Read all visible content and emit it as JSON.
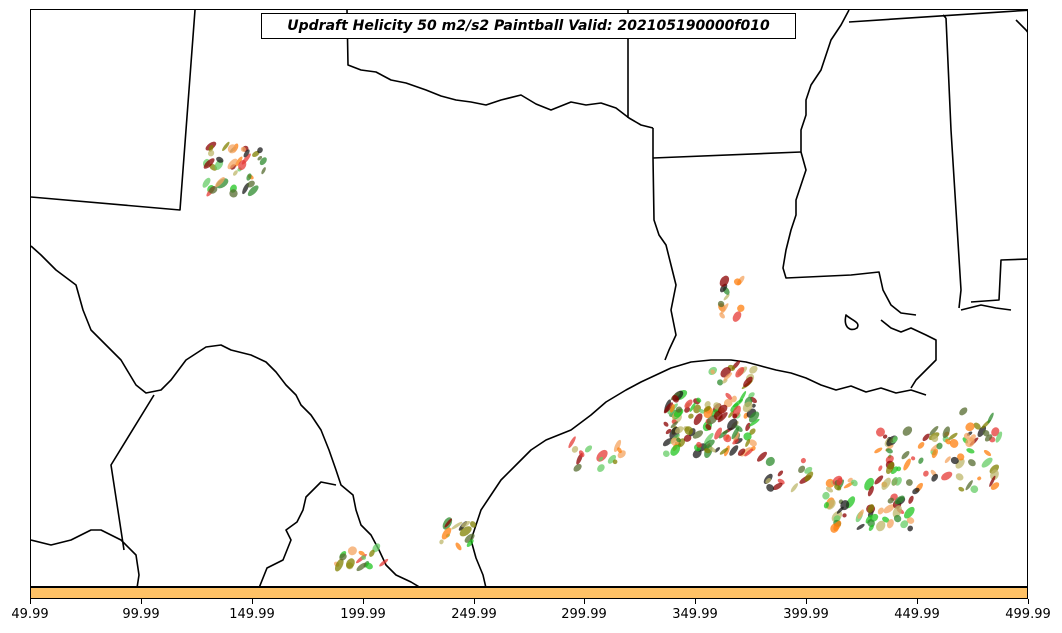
{
  "title": "Updraft Helicity 50 m2/s2 Paintball Valid: 202105190000f010",
  "colorbar": {
    "color": "#ffc266"
  },
  "x_axis": {
    "ticks": [
      "49.99",
      "99.99",
      "149.99",
      "199.99",
      "249.99",
      "299.99",
      "349.99",
      "399.99",
      "449.99",
      "499.99"
    ],
    "range": [
      49.99,
      499.99
    ]
  },
  "member_colors": [
    "#1a1a1a",
    "#8b0000",
    "#e53935",
    "#ff7f0e",
    "#f4a460",
    "#bdb76b",
    "#808000",
    "#556b2f",
    "#22c522",
    "#2e8b2e",
    "#66cc66"
  ]
}
